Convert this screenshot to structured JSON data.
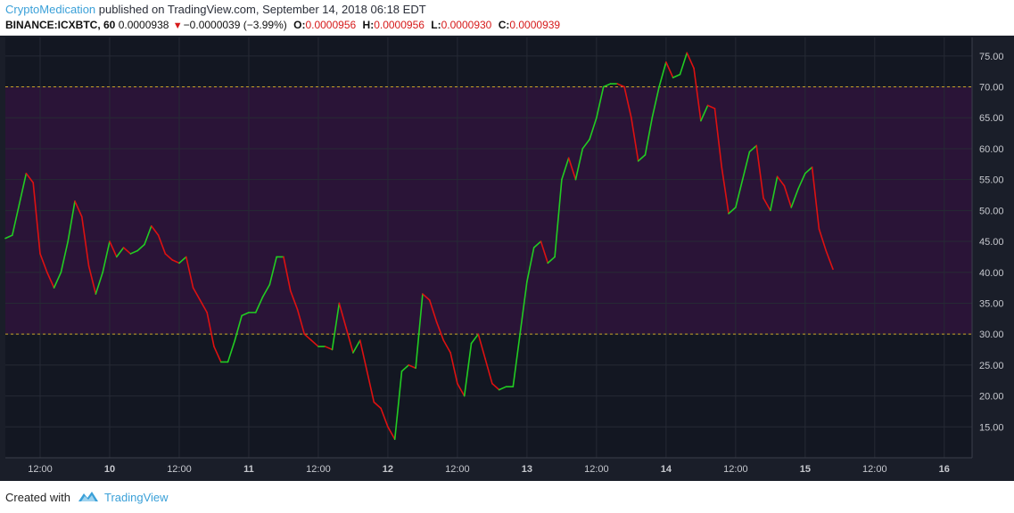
{
  "header": {
    "author": "CryptoMedication",
    "published_text": " published on TradingView.com, September 14, 2018 06:18 EDT",
    "symbol": "BINANCE:ICXBTC, 60",
    "price": "0.0000938",
    "change": "−0.0000039 (−3.99%)",
    "o_label": "O:",
    "o_value": "0.0000956",
    "h_label": "H:",
    "h_value": "0.0000956",
    "l_label": "L:",
    "l_value": "0.0000930",
    "c_label": "C:",
    "c_value": "0.0000939"
  },
  "footer": {
    "created_with": "Created with",
    "brand": "TradingView"
  },
  "colors": {
    "background": "#131722",
    "band_fill": "#2a1437",
    "up": "#22cc22",
    "down": "#dd1111",
    "level_line": "#c9a227",
    "grid": "#262a35",
    "axis_text": "#c6c8ce"
  },
  "chart_data": {
    "type": "line",
    "indicator": "RSI (colored by direction)",
    "ylim": [
      10,
      78
    ],
    "levels": [
      30,
      70
    ],
    "y_ticks": [
      15,
      20,
      25,
      30,
      35,
      40,
      45,
      50,
      55,
      60,
      65,
      70,
      75
    ],
    "y_tick_labels": [
      "15.00",
      "20.00",
      "25.00",
      "30.00",
      "35.00",
      "40.00",
      "45.00",
      "50.00",
      "55.00",
      "60.00",
      "65.00",
      "70.00",
      "75.00"
    ],
    "x_ticks": [
      5,
      15,
      25,
      35,
      45,
      55,
      65,
      75,
      85,
      95,
      105,
      115,
      125,
      135
    ],
    "x_tick_labels": [
      "12:00",
      "10",
      "12:00",
      "11",
      "12:00",
      "12",
      "12:00",
      "13",
      "12:00",
      "14",
      "12:00",
      "15",
      "12:00",
      "16"
    ],
    "x_range": [
      0,
      139
    ],
    "series": [
      {
        "values": [
          45.5,
          46,
          51,
          56,
          54.5,
          43,
          40,
          37.5,
          40,
          45,
          51.5,
          49,
          41,
          36.5,
          40,
          45,
          42.5,
          44,
          43,
          43.5,
          44.5,
          47.5,
          46,
          43,
          42,
          41.5,
          42.5,
          37.5,
          35.5,
          33.5,
          28,
          25.5,
          25.5,
          29,
          33,
          33.5,
          33.5,
          36,
          38,
          42.5,
          42.5,
          37,
          34,
          30,
          29,
          28,
          28,
          27.5,
          35,
          31,
          27,
          29,
          24,
          19,
          18,
          15,
          13,
          24,
          25,
          24.5,
          36.5,
          35.5,
          32,
          29,
          27,
          22,
          20,
          28.5,
          30,
          26,
          22,
          21,
          21.5,
          21.5,
          30,
          38.5,
          44,
          45,
          41.5,
          42.5,
          55,
          58.5,
          55,
          60,
          61.5,
          65,
          70,
          70.5,
          70.5,
          70,
          65,
          58,
          59,
          65,
          70,
          74,
          71.5,
          72,
          75.5,
          73,
          64.5,
          67,
          66.5,
          57,
          49.5,
          50.5,
          55,
          59.5,
          60.5,
          52,
          50,
          55.5,
          54,
          50.5,
          53.5,
          56,
          57,
          47,
          43.5,
          40.5
        ]
      }
    ]
  }
}
